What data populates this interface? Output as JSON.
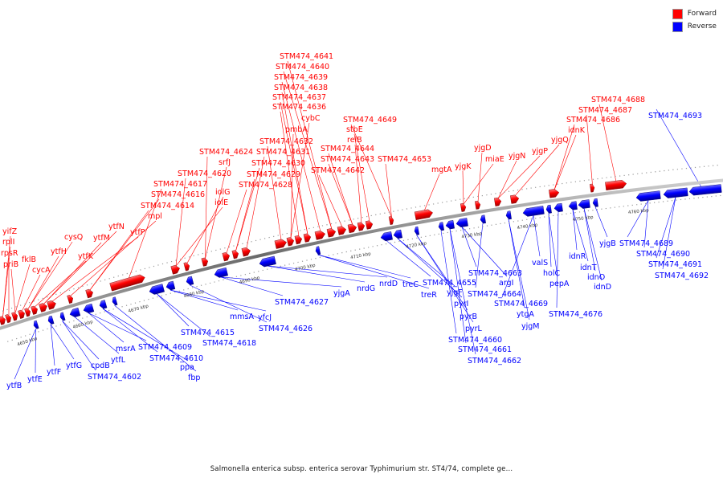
{
  "legend": {
    "forward": {
      "label": "Forward",
      "color": "#ff0000"
    },
    "reverse": {
      "label": "Reverse",
      "color": "#0000ff"
    }
  },
  "caption": "Salmonella enterica subsp. enterica serovar Typhimurium str. ST4/74, complete ge...",
  "axis": {
    "unit": "kbp",
    "ticks": [
      "4650 kbp",
      "4660 kbp",
      "4670 kbp",
      "4680 kbp",
      "4690 kbp",
      "4700 kbp",
      "4710 kbp",
      "4720 kbp",
      "4730 kbp",
      "4740 kbp",
      "4750 kbp",
      "4760 kbp"
    ]
  },
  "forward_genes": [
    "yifZ",
    "rplI",
    "rpsR",
    "priB",
    "fklB",
    "cycA",
    "cysQ",
    "ytfH",
    "ytfK",
    "ytfM",
    "ytfN",
    "ytfP",
    "mpl",
    "STM474_4614",
    "STM474_4616",
    "STM474_4617",
    "STM474_4620",
    "iolE",
    "iolG",
    "srfJ",
    "STM474_4624",
    "STM474_4628",
    "STM474_4629",
    "STM474_4630",
    "STM474_4631",
    "STM474_4632",
    "pmbA",
    "cybC",
    "STM474_4636",
    "STM474_4637",
    "STM474_4638",
    "STM474_4639",
    "STM474_4640",
    "STM474_4641",
    "STM474_4642",
    "STM474_4643",
    "STM474_4644",
    "relB",
    "stbE",
    "STM474_4649",
    "STM474_4653",
    "mgtA",
    "yjgK",
    "miaE",
    "yjgD",
    "yjgN",
    "yjgP",
    "yjgQ",
    "idnK",
    "STM474_4686",
    "STM474_4687",
    "STM474_4688"
  ],
  "reverse_genes": [
    "ytfB",
    "ytfE",
    "ytfF",
    "ytfG",
    "cpdB",
    "STM474_4602",
    "ytfL",
    "msrA",
    "STM474_4609",
    "STM474_4610",
    "ppa",
    "fbp",
    "STM474_4615",
    "STM474_4618",
    "mmsA",
    "yfcJ",
    "STM474_4626",
    "STM474_4627",
    "yjgA",
    "nrdG",
    "nrdD",
    "treC",
    "treR",
    "STM474_4655",
    "yjgF",
    "pyrI",
    "pyrB",
    "pyrL",
    "STM474_4660",
    "STM474_4661",
    "STM474_4662",
    "STM474_4663",
    "argI",
    "STM474_4664",
    "ytgA",
    "yjgM",
    "STM474_4669",
    "valS",
    "holC",
    "pepA",
    "STM474_4676",
    "idnR",
    "idnT",
    "idnO",
    "idnD",
    "yjgB",
    "STM474_4689",
    "STM474_4690",
    "STM474_4691",
    "STM474_4692",
    "STM474_4693"
  ]
}
